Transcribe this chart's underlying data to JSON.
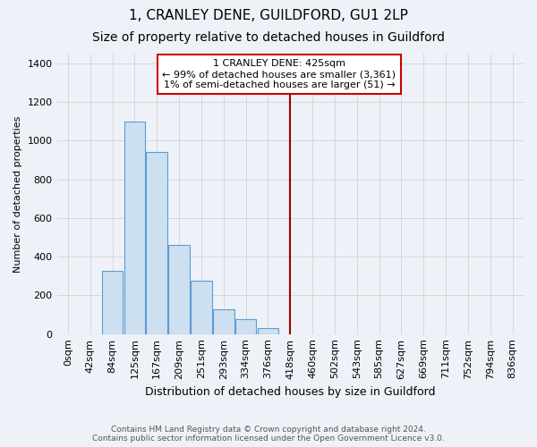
{
  "title": "1, CRANLEY DENE, GUILDFORD, GU1 2LP",
  "subtitle": "Size of property relative to detached houses in Guildford",
  "xlabel": "Distribution of detached houses by size in Guildford",
  "ylabel": "Number of detached properties",
  "bar_labels": [
    "0sqm",
    "42sqm",
    "84sqm",
    "125sqm",
    "167sqm",
    "209sqm",
    "251sqm",
    "293sqm",
    "334sqm",
    "376sqm",
    "418sqm",
    "460sqm",
    "502sqm",
    "543sqm",
    "585sqm",
    "627sqm",
    "669sqm",
    "711sqm",
    "752sqm",
    "794sqm",
    "836sqm"
  ],
  "bar_values": [
    0,
    0,
    325,
    1100,
    940,
    460,
    275,
    130,
    75,
    30,
    0,
    0,
    0,
    0,
    0,
    0,
    0,
    0,
    0,
    0,
    0
  ],
  "bar_color": "#cde0f0",
  "bar_edge_color": "#5b9bd5",
  "ylim": [
    0,
    1450
  ],
  "vline_x_idx": 10,
  "vline_color": "#990000",
  "annotation_title": "1 CRANLEY DENE: 425sqm",
  "annotation_line1": "← 99% of detached houses are smaller (3,361)",
  "annotation_line2": "1% of semi-detached houses are larger (51) →",
  "annotation_box_color": "#ffffff",
  "annotation_box_edge": "#cc0000",
  "footer1": "Contains HM Land Registry data © Crown copyright and database right 2024.",
  "footer2": "Contains public sector information licensed under the Open Government Licence v3.0.",
  "background_color": "#eef2f8",
  "title_fontsize": 11,
  "subtitle_fontsize": 10,
  "yticks": [
    0,
    200,
    400,
    600,
    800,
    1000,
    1200,
    1400
  ],
  "tick_fontsize": 8,
  "xlabel_fontsize": 9,
  "ylabel_fontsize": 8,
  "footer_fontsize": 6.5,
  "annotation_fontsize": 8
}
